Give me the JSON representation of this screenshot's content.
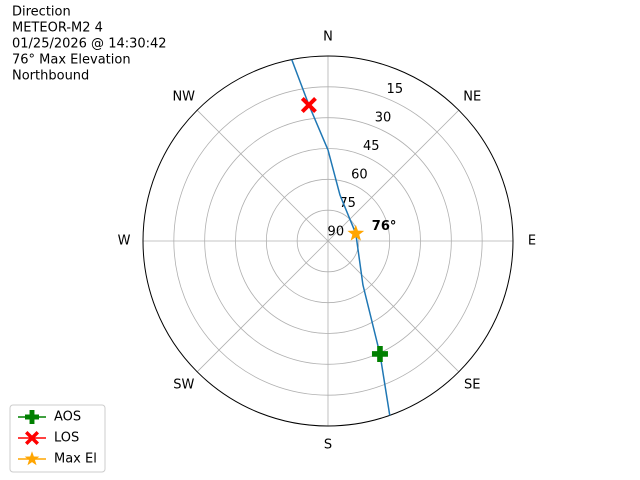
{
  "chart_data": {
    "type": "polar",
    "title_lines": [
      "Direction",
      "METEOR-M2 4",
      "01/25/2026 @ 14:30:42",
      "76° Max Elevation",
      "Northbound"
    ],
    "rlim": [
      90,
      0
    ],
    "rticks": [
      90,
      75,
      60,
      45,
      30,
      15
    ],
    "thetaticks": [
      {
        "value": 0,
        "label": "N"
      },
      {
        "value": 45,
        "label": "NE"
      },
      {
        "value": 90,
        "label": "E"
      },
      {
        "value": 135,
        "label": "SE"
      },
      {
        "value": 180,
        "label": "S"
      },
      {
        "value": 225,
        "label": "SW"
      },
      {
        "value": 270,
        "label": "W"
      },
      {
        "value": 315,
        "label": "NW"
      }
    ],
    "grid": true,
    "legend": "lower left",
    "series": [
      {
        "color": "#1f77b4",
        "x": [
          348.7,
          352.0,
          0,
          14.6,
          75,
          141.5,
          155.3,
          160.5
        ],
        "values": [
          0,
          23.2,
          45.7,
          66.9,
          76,
          62.7,
          29.5,
          0
        ]
      },
      {
        "name": "AOS",
        "color": "#008000",
        "marker": "plus",
        "x": [
          155.3
        ],
        "values": [
          29.5
        ]
      },
      {
        "name": "LOS",
        "color": "#ff0000",
        "marker": "x",
        "x": [
          352.0
        ],
        "values": [
          23.2
        ]
      },
      {
        "name": "Max El",
        "color": "#ffa500",
        "marker": "star",
        "x": [
          75
        ],
        "values": [
          76
        ],
        "value_labels": [
          "76°"
        ]
      }
    ]
  }
}
